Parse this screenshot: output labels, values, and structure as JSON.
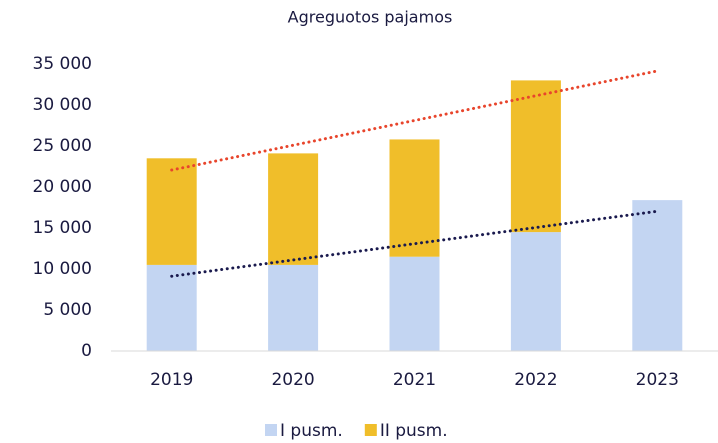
{
  "chart_data": {
    "type": "stacked_bar",
    "title": "Agreguotos pajamos",
    "categories": [
      "2019",
      "2020",
      "2021",
      "2022",
      "2023"
    ],
    "series": [
      {
        "name": "I pusm.",
        "color": "#c3d5f2",
        "values": [
          10500,
          10500,
          11500,
          14500,
          18400
        ],
        "trendline_color": "#1a1a4e"
      },
      {
        "name": "II pusm.",
        "color": "#f0be2a",
        "values": [
          13000,
          13600,
          14300,
          18500,
          null
        ],
        "trendline_color": "#e8452c"
      }
    ],
    "ylim": [
      0,
      35000
    ],
    "yticks": [
      0,
      {
        "value": 5000,
        "label": "5 000"
      },
      {
        "value": 10000,
        "label": "10 000"
      },
      {
        "value": 15000,
        "label": "15 000"
      },
      {
        "value": 20000,
        "label": "20 000"
      },
      {
        "value": 25000,
        "label": "25 000"
      },
      {
        "value": 30000,
        "label": "30 000"
      },
      {
        "value": 35000,
        "label": "35 000"
      }
    ],
    "legend": "bottom"
  }
}
